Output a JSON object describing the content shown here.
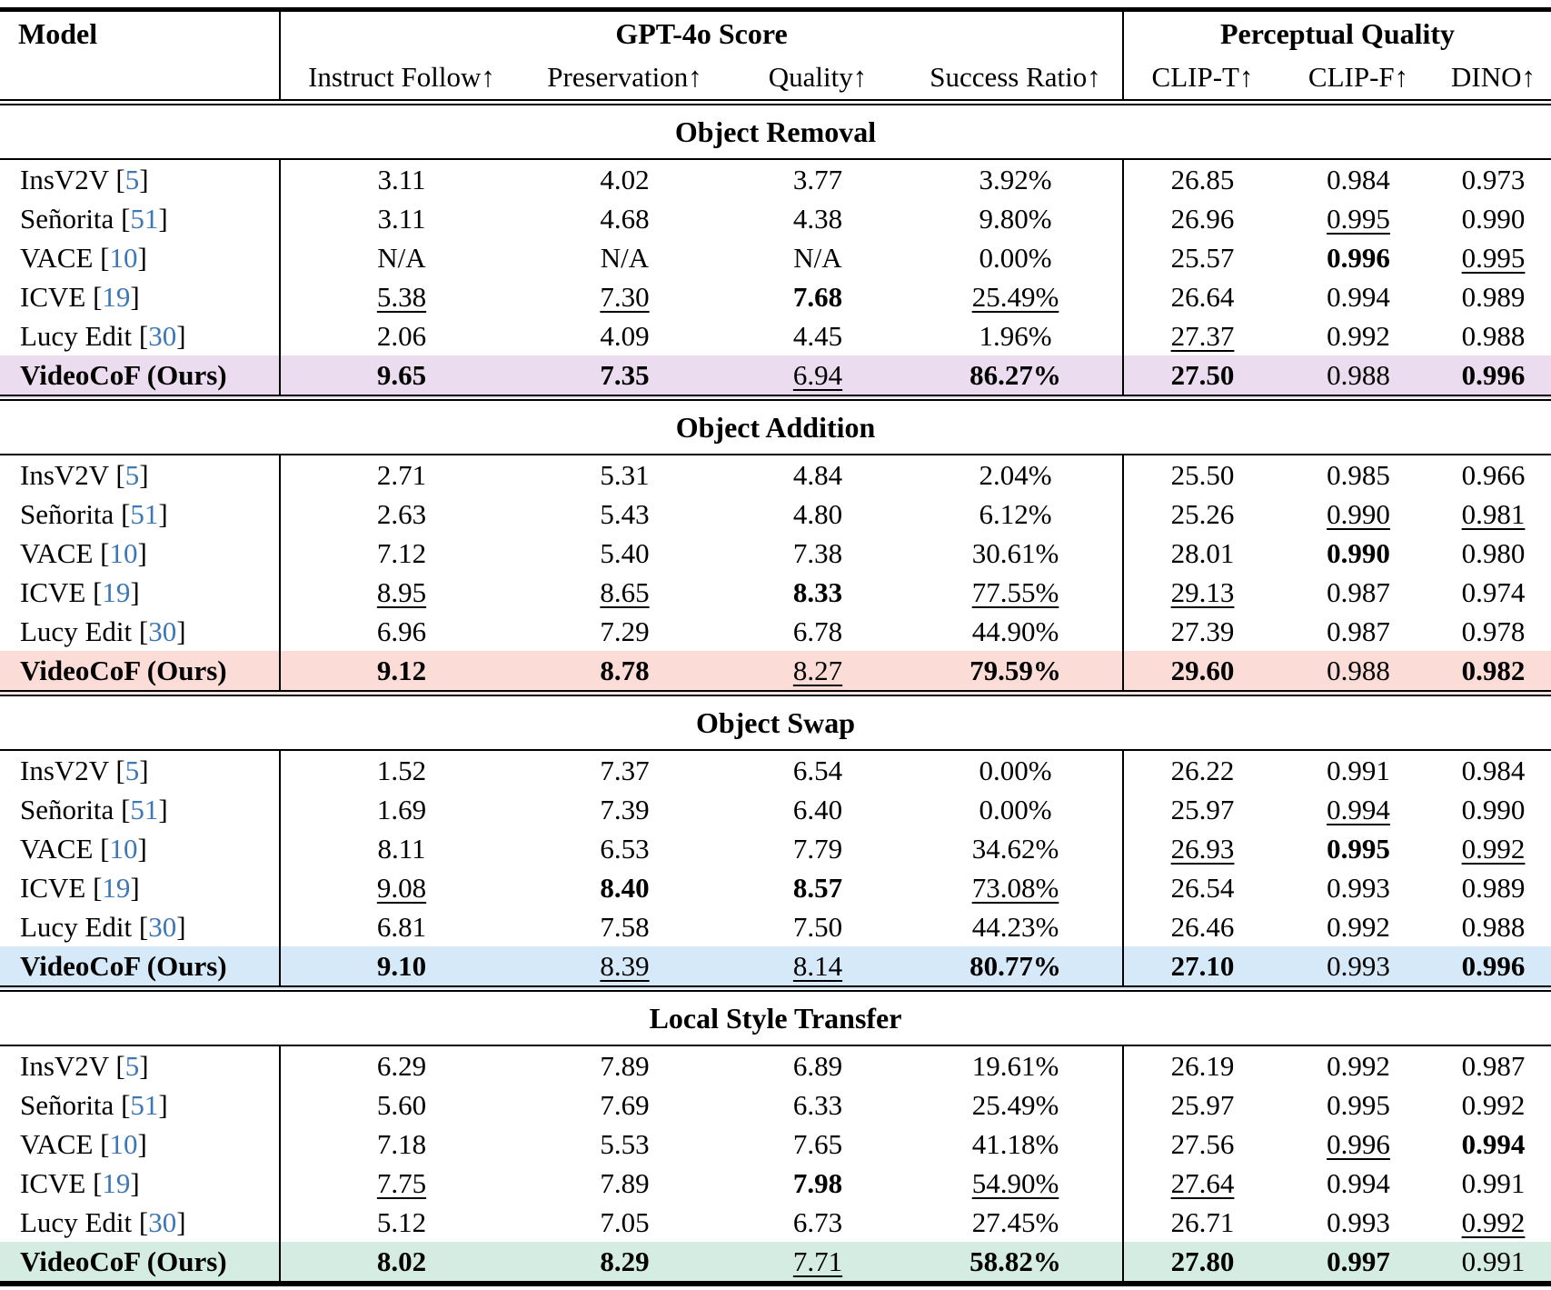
{
  "table": {
    "model_header": "Model",
    "group_headers": [
      {
        "label": "GPT-4o Score",
        "span": 4
      },
      {
        "label": "Perceptual Quality",
        "span": 3
      }
    ],
    "sub_headers": [
      "Instruct Follow↑",
      "Preservation↑",
      "Quality↑",
      "Success Ratio↑",
      "CLIP-T↑",
      "CLIP-F↑",
      "DINO↑"
    ],
    "citation_color": "#3d77b6",
    "style_legend": {
      "n": "normal",
      "b": "bold (best)",
      "u": "underline (second best)"
    },
    "sections": [
      {
        "title": "Object Removal",
        "highlight_color": "#ecdcf0",
        "rows": [
          {
            "model": "InsV2V",
            "cite": "5",
            "highlight": false,
            "values": [
              "3.11",
              "4.02",
              "3.77",
              "3.92%",
              "26.85",
              "0.984",
              "0.973"
            ],
            "styles": [
              "n",
              "n",
              "n",
              "n",
              "n",
              "n",
              "n"
            ]
          },
          {
            "model": "Señorita",
            "cite": "51",
            "highlight": false,
            "values": [
              "3.11",
              "4.68",
              "4.38",
              "9.80%",
              "26.96",
              "0.995",
              "0.990"
            ],
            "styles": [
              "n",
              "n",
              "n",
              "n",
              "n",
              "u",
              "n"
            ]
          },
          {
            "model": "VACE",
            "cite": "10",
            "highlight": false,
            "values": [
              "N/A",
              "N/A",
              "N/A",
              "0.00%",
              "25.57",
              "0.996",
              "0.995"
            ],
            "styles": [
              "n",
              "n",
              "n",
              "n",
              "n",
              "b",
              "u"
            ]
          },
          {
            "model": "ICVE",
            "cite": "19",
            "highlight": false,
            "values": [
              "5.38",
              "7.30",
              "7.68",
              "25.49%",
              "26.64",
              "0.994",
              "0.989"
            ],
            "styles": [
              "u",
              "u",
              "b",
              "u",
              "n",
              "n",
              "n"
            ]
          },
          {
            "model": "Lucy Edit",
            "cite": "30",
            "highlight": false,
            "values": [
              "2.06",
              "4.09",
              "4.45",
              "1.96%",
              "27.37",
              "0.992",
              "0.988"
            ],
            "styles": [
              "n",
              "n",
              "n",
              "n",
              "u",
              "n",
              "n"
            ]
          },
          {
            "model": "VideoCoF (Ours)",
            "cite": "",
            "highlight": true,
            "values": [
              "9.65",
              "7.35",
              "6.94",
              "86.27%",
              "27.50",
              "0.988",
              "0.996"
            ],
            "styles": [
              "b",
              "b",
              "u",
              "b",
              "b",
              "n",
              "b"
            ]
          }
        ]
      },
      {
        "title": "Object Addition",
        "highlight_color": "#fbdcd7",
        "rows": [
          {
            "model": "InsV2V",
            "cite": "5",
            "highlight": false,
            "values": [
              "2.71",
              "5.31",
              "4.84",
              "2.04%",
              "25.50",
              "0.985",
              "0.966"
            ],
            "styles": [
              "n",
              "n",
              "n",
              "n",
              "n",
              "n",
              "n"
            ]
          },
          {
            "model": "Señorita",
            "cite": "51",
            "highlight": false,
            "values": [
              "2.63",
              "5.43",
              "4.80",
              "6.12%",
              "25.26",
              "0.990",
              "0.981"
            ],
            "styles": [
              "n",
              "n",
              "n",
              "n",
              "n",
              "u",
              "u"
            ]
          },
          {
            "model": "VACE",
            "cite": "10",
            "highlight": false,
            "values": [
              "7.12",
              "5.40",
              "7.38",
              "30.61%",
              "28.01",
              "0.990",
              "0.980"
            ],
            "styles": [
              "n",
              "n",
              "n",
              "n",
              "n",
              "b",
              "n"
            ]
          },
          {
            "model": "ICVE",
            "cite": "19",
            "highlight": false,
            "values": [
              "8.95",
              "8.65",
              "8.33",
              "77.55%",
              "29.13",
              "0.987",
              "0.974"
            ],
            "styles": [
              "u",
              "u",
              "b",
              "u",
              "u",
              "n",
              "n"
            ]
          },
          {
            "model": "Lucy Edit",
            "cite": "30",
            "highlight": false,
            "values": [
              "6.96",
              "7.29",
              "6.78",
              "44.90%",
              "27.39",
              "0.987",
              "0.978"
            ],
            "styles": [
              "n",
              "n",
              "n",
              "n",
              "n",
              "n",
              "n"
            ]
          },
          {
            "model": "VideoCoF (Ours)",
            "cite": "",
            "highlight": true,
            "values": [
              "9.12",
              "8.78",
              "8.27",
              "79.59%",
              "29.60",
              "0.988",
              "0.982"
            ],
            "styles": [
              "b",
              "b",
              "u",
              "b",
              "b",
              "n",
              "b"
            ]
          }
        ]
      },
      {
        "title": "Object Swap",
        "highlight_color": "#d6e9f8",
        "rows": [
          {
            "model": "InsV2V",
            "cite": "5",
            "highlight": false,
            "values": [
              "1.52",
              "7.37",
              "6.54",
              "0.00%",
              "26.22",
              "0.991",
              "0.984"
            ],
            "styles": [
              "n",
              "n",
              "n",
              "n",
              "n",
              "n",
              "n"
            ]
          },
          {
            "model": "Señorita",
            "cite": "51",
            "highlight": false,
            "values": [
              "1.69",
              "7.39",
              "6.40",
              "0.00%",
              "25.97",
              "0.994",
              "0.990"
            ],
            "styles": [
              "n",
              "n",
              "n",
              "n",
              "n",
              "u",
              "n"
            ]
          },
          {
            "model": "VACE",
            "cite": "10",
            "highlight": false,
            "values": [
              "8.11",
              "6.53",
              "7.79",
              "34.62%",
              "26.93",
              "0.995",
              "0.992"
            ],
            "styles": [
              "n",
              "n",
              "n",
              "n",
              "u",
              "b",
              "u"
            ]
          },
          {
            "model": "ICVE",
            "cite": "19",
            "highlight": false,
            "values": [
              "9.08",
              "8.40",
              "8.57",
              "73.08%",
              "26.54",
              "0.993",
              "0.989"
            ],
            "styles": [
              "u",
              "b",
              "b",
              "u",
              "n",
              "n",
              "n"
            ]
          },
          {
            "model": "Lucy Edit",
            "cite": "30",
            "highlight": false,
            "values": [
              "6.81",
              "7.58",
              "7.50",
              "44.23%",
              "26.46",
              "0.992",
              "0.988"
            ],
            "styles": [
              "n",
              "n",
              "n",
              "n",
              "n",
              "n",
              "n"
            ]
          },
          {
            "model": "VideoCoF (Ours)",
            "cite": "",
            "highlight": true,
            "values": [
              "9.10",
              "8.39",
              "8.14",
              "80.77%",
              "27.10",
              "0.993",
              "0.996"
            ],
            "styles": [
              "b",
              "u",
              "u",
              "b",
              "b",
              "n",
              "b"
            ]
          }
        ]
      },
      {
        "title": "Local Style Transfer",
        "highlight_color": "#d4ece2",
        "rows": [
          {
            "model": "InsV2V",
            "cite": "5",
            "highlight": false,
            "values": [
              "6.29",
              "7.89",
              "6.89",
              "19.61%",
              "26.19",
              "0.992",
              "0.987"
            ],
            "styles": [
              "n",
              "n",
              "n",
              "n",
              "n",
              "n",
              "n"
            ]
          },
          {
            "model": "Señorita",
            "cite": "51",
            "highlight": false,
            "values": [
              "5.60",
              "7.69",
              "6.33",
              "25.49%",
              "25.97",
              "0.995",
              "0.992"
            ],
            "styles": [
              "n",
              "n",
              "n",
              "n",
              "n",
              "n",
              "n"
            ]
          },
          {
            "model": "VACE",
            "cite": "10",
            "highlight": false,
            "values": [
              "7.18",
              "5.53",
              "7.65",
              "41.18%",
              "27.56",
              "0.996",
              "0.994"
            ],
            "styles": [
              "n",
              "n",
              "n",
              "n",
              "n",
              "u",
              "b"
            ]
          },
          {
            "model": "ICVE",
            "cite": "19",
            "highlight": false,
            "values": [
              "7.75",
              "7.89",
              "7.98",
              "54.90%",
              "27.64",
              "0.994",
              "0.991"
            ],
            "styles": [
              "u",
              "n",
              "b",
              "u",
              "u",
              "n",
              "n"
            ]
          },
          {
            "model": "Lucy Edit",
            "cite": "30",
            "highlight": false,
            "values": [
              "5.12",
              "7.05",
              "6.73",
              "27.45%",
              "26.71",
              "0.993",
              "0.992"
            ],
            "styles": [
              "n",
              "n",
              "n",
              "n",
              "n",
              "n",
              "u"
            ]
          },
          {
            "model": "VideoCoF (Ours)",
            "cite": "",
            "highlight": true,
            "values": [
              "8.02",
              "8.29",
              "7.71",
              "58.82%",
              "27.80",
              "0.997",
              "0.991"
            ],
            "styles": [
              "b",
              "b",
              "u",
              "b",
              "b",
              "b",
              "n"
            ]
          }
        ]
      }
    ]
  }
}
